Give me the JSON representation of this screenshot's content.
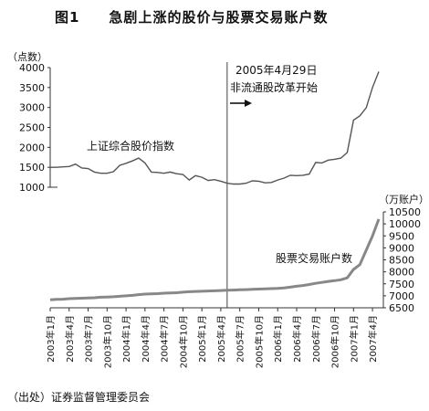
{
  "title": "图1　　急剧上涨的股价与股票交易账户数",
  "source": "（出处）证券监督管理委员会",
  "chart_data": [
    {
      "type": "line",
      "title": "上证综合股价指数",
      "ylabel": "（点数）",
      "ylim": [
        1000,
        4000
      ],
      "yticks": [
        1000,
        1500,
        2000,
        2500,
        3000,
        3500,
        4000
      ],
      "series": [
        {
          "name": "上证综合股价指数",
          "color": "#555555",
          "x": [
            0,
            1,
            2,
            3,
            4,
            5,
            6,
            7,
            8,
            9,
            10,
            11,
            12,
            13,
            14,
            15,
            16,
            17,
            18,
            19,
            20,
            21,
            22,
            23,
            24,
            25,
            26,
            27,
            28,
            29,
            30,
            31,
            32,
            33,
            34,
            35,
            36,
            37,
            38,
            39,
            40,
            41,
            42,
            43,
            44,
            45,
            46,
            47,
            48,
            49,
            50,
            51,
            52
          ],
          "values": [
            1500,
            1500,
            1510,
            1520,
            1580,
            1480,
            1470,
            1380,
            1350,
            1350,
            1390,
            1550,
            1600,
            1660,
            1730,
            1610,
            1380,
            1370,
            1350,
            1380,
            1340,
            1320,
            1180,
            1290,
            1250,
            1170,
            1190,
            1150,
            1100,
            1080,
            1080,
            1100,
            1160,
            1150,
            1110,
            1120,
            1180,
            1230,
            1300,
            1290,
            1300,
            1330,
            1620,
            1610,
            1680,
            1700,
            1730,
            1870,
            2680,
            2790,
            2990,
            3500,
            3900
          ]
        }
      ],
      "annotations": [
        "2005年4月29日",
        "非流通股改革开始"
      ]
    },
    {
      "type": "line",
      "title": "股票交易账户数",
      "ylabel": "（万账户）",
      "ylim": [
        6500,
        10500
      ],
      "yticks": [
        6500,
        7000,
        7500,
        8000,
        8500,
        9000,
        9500,
        10000,
        10500
      ],
      "series": [
        {
          "name": "股票交易账户数",
          "color": "#888888",
          "x": [
            0,
            1,
            2,
            3,
            4,
            5,
            6,
            7,
            8,
            9,
            10,
            11,
            12,
            13,
            14,
            15,
            16,
            17,
            18,
            19,
            20,
            21,
            22,
            23,
            24,
            25,
            26,
            27,
            28,
            29,
            30,
            31,
            32,
            33,
            34,
            35,
            36,
            37,
            38,
            39,
            40,
            41,
            42,
            43,
            44,
            45,
            46,
            47,
            48,
            49,
            50,
            51,
            52
          ],
          "values": [
            6830,
            6850,
            6860,
            6880,
            6890,
            6900,
            6910,
            6920,
            6940,
            6950,
            6960,
            6980,
            7000,
            7020,
            7050,
            7070,
            7080,
            7090,
            7110,
            7120,
            7130,
            7150,
            7170,
            7180,
            7190,
            7200,
            7210,
            7220,
            7230,
            7240,
            7250,
            7260,
            7270,
            7280,
            7290,
            7300,
            7310,
            7330,
            7360,
            7400,
            7430,
            7470,
            7520,
            7560,
            7600,
            7630,
            7670,
            7750,
            8100,
            8300,
            8900,
            9500,
            10200
          ]
        }
      ]
    }
  ],
  "x_axis": {
    "labels": [
      "2003年1月",
      "2003年4月",
      "2003年7月",
      "2003年10月",
      "2004年1月",
      "2004年4月",
      "2004年7月",
      "2004年10月",
      "2005年1月",
      "2005年4月",
      "2005年7月",
      "2005年10月",
      "2006年1月",
      "2006年4月",
      "2006年7月",
      "2006年10月",
      "2007年1月",
      "2007年4月"
    ]
  }
}
